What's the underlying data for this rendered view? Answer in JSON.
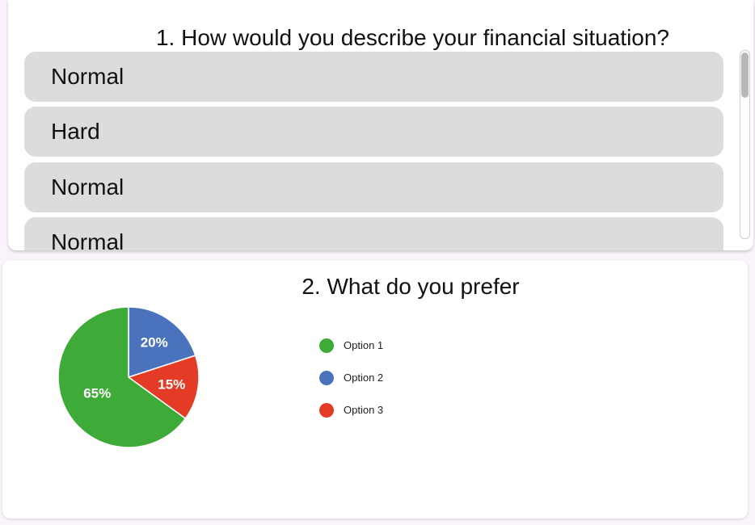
{
  "question1": {
    "title": "1. How would you describe your financial situation?",
    "answers": [
      "Normal",
      "Hard",
      "Normal",
      "Normal"
    ]
  },
  "question2": {
    "title": "2. What do you prefer"
  },
  "chart_data": {
    "type": "pie",
    "categories": [
      "Option 1",
      "Option 2",
      "Option 3"
    ],
    "values": [
      65,
      20,
      15
    ],
    "labels": [
      "65%",
      "20%",
      "15%"
    ],
    "colors": [
      "#3eaa37",
      "#4a72bd",
      "#e43b27"
    ],
    "legend": "right",
    "title": ""
  }
}
